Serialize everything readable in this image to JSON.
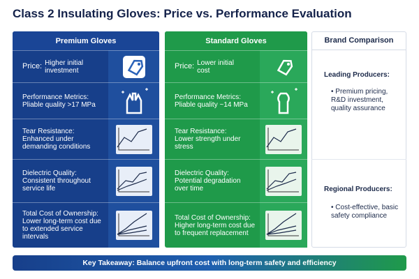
{
  "title": "Class 2 Insulating Gloves: Price vs. Performance Evaluation",
  "columns": [
    {
      "header": "Premium Gloves",
      "rows": [
        {
          "label": "Price:",
          "text": "Higher initial investment"
        },
        {
          "label": "Performance Metrics:",
          "text": "Pliable quality >17 MPa"
        },
        {
          "label": "Tear Resistance:",
          "text": "Enhanced under demanding conditions"
        },
        {
          "label": "Dielectric Quality:",
          "text": "Consistent throughout service life"
        },
        {
          "label": "Total Cost of Ownership:",
          "text": "Lower long-term cost due to extended service intervals"
        }
      ]
    },
    {
      "header": "Standard Gloves",
      "rows": [
        {
          "label": "Price:",
          "text": "Lower initial cost"
        },
        {
          "label": "Performance Metrics:",
          "text": "Pliable quality ~14 MPa"
        },
        {
          "label": "Tear Resistance:",
          "text": "Lower strength under stress"
        },
        {
          "label": "Dielectric Quality:",
          "text": "Potential degradation over time"
        },
        {
          "label": "Total Cost of Ownership:",
          "text": "Higher long-term cost due to frequent replacement"
        }
      ]
    }
  ],
  "brand": {
    "header": "Brand Comparison",
    "groups": [
      {
        "title": "Leading Producers:",
        "bullet": "Premium pricing, R&D investment, quality assurance"
      },
      {
        "title": "Regional Producers:",
        "bullet": "Cost-effective, basic safety compliance"
      }
    ]
  },
  "takeaway": {
    "label": "Key Takeaway:",
    "text": "Balance upfront cost with long-term safety and efficiency"
  }
}
